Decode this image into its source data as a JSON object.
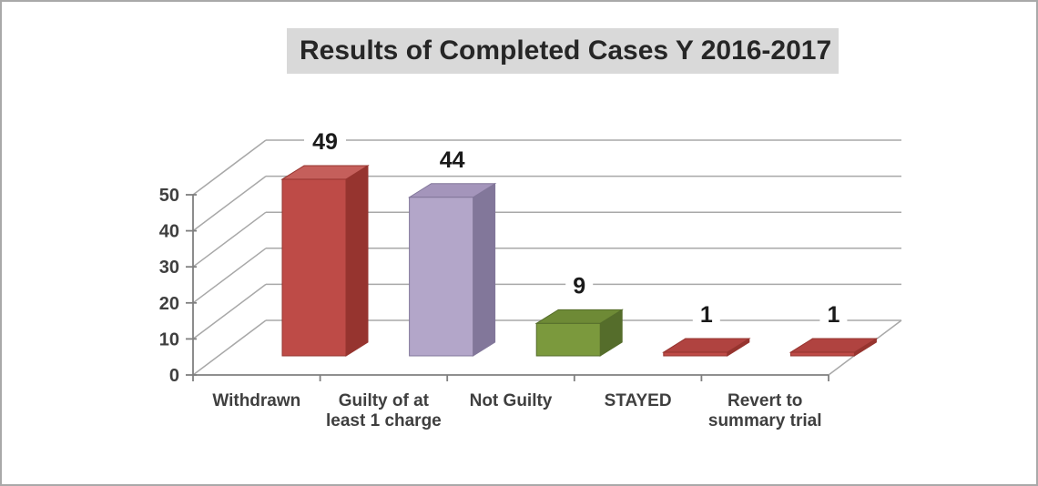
{
  "window": {
    "background": "#ffffff",
    "border_color": "#a9a9a9"
  },
  "chart_data": {
    "type": "bar",
    "projection": "3d",
    "title": "Results of Completed Cases Y 2016-2017",
    "title_bg": "#d9d9d9",
    "title_text_color": "#262626",
    "categories": [
      "Withdrawn",
      "Guilty of at least 1 charge",
      "Not Guilty",
      "STAYED",
      "Revert to summary trial"
    ],
    "category_label_lines": [
      [
        "Withdrawn"
      ],
      [
        "Guilty of at",
        "least 1 charge"
      ],
      [
        "Not Guilty"
      ],
      [
        "STAYED"
      ],
      [
        "Revert to",
        "summary trial"
      ]
    ],
    "values": [
      49,
      44,
      9,
      1,
      1
    ],
    "data_labels": [
      "49",
      "44",
      "9",
      "1",
      "1"
    ],
    "xlabel": "",
    "ylabel": "",
    "yticks": [
      0,
      10,
      20,
      30,
      40,
      50
    ],
    "ylim": [
      0,
      50
    ],
    "grid": true,
    "legend": "none",
    "bar_colors": [
      {
        "front": "#be4b47",
        "side": "#96342f",
        "top": "#c55f5b"
      },
      {
        "front": "#b3a6c9",
        "side": "#82779a",
        "top": "#a495bb"
      },
      {
        "front": "#7b993d",
        "side": "#556d2b",
        "top": "#6e8a36"
      },
      {
        "front": "#be4b47",
        "side": "#96342f",
        "top": "#b04340"
      },
      {
        "front": "#be4b47",
        "side": "#96342f",
        "top": "#b04340"
      }
    ],
    "colors": {
      "gridline": "#a8a8a8",
      "axis": "#7f7f7f",
      "tick_label": "#3f3f3f",
      "data_label": "#1a1a1a",
      "wall": "#ffffff"
    }
  }
}
